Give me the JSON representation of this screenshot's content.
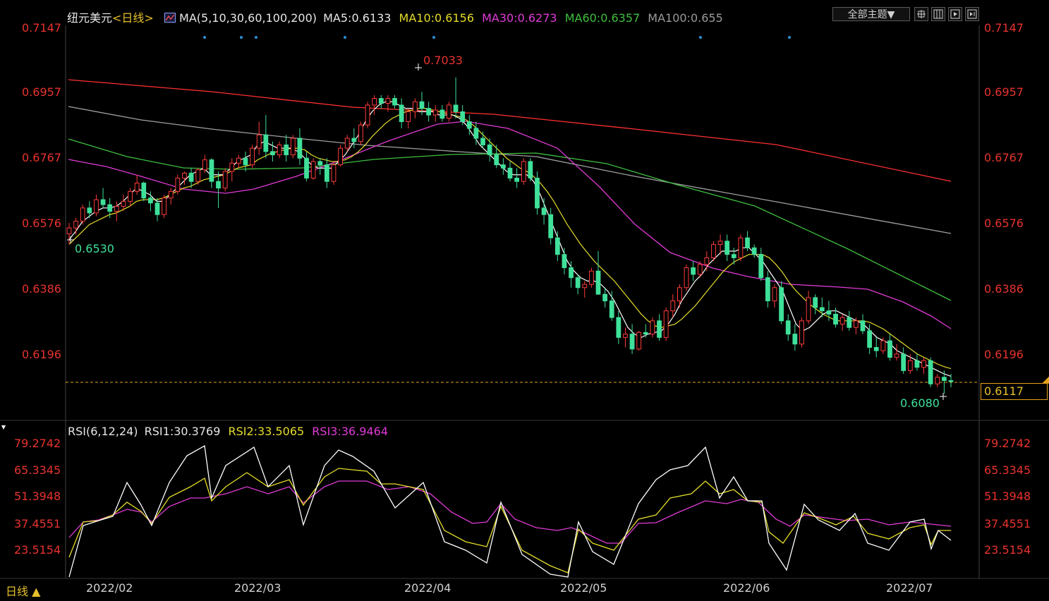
{
  "header": {
    "symbol": "纽元美元",
    "period": "<日线>",
    "ma_label": "MA(5,10,30,60,100,200)",
    "ma5": "MA5:0.6133",
    "ma10": "MA10:0.6156",
    "ma30": "MA30:0.6273",
    "ma60": "MA60:0.6357",
    "ma100": "MA100:0.655",
    "theme_button": "全部主题▼",
    "icon_buttons": [
      "crosshair-icon",
      "layout-icon",
      "replay-icon",
      "next-icon"
    ]
  },
  "price_axis": {
    "labels": [
      "0.7147",
      "0.6957",
      "0.6767",
      "0.6576",
      "0.6386",
      "0.6196"
    ],
    "current_price": "0.6117",
    "high_label": "0.7033",
    "low_label_left": "0.6530",
    "low_label_right": "0.6080"
  },
  "rsi": {
    "label": "RSI(6,12,24)",
    "rsi1": "RSI1:30.3769",
    "rsi2": "RSI2:33.5065",
    "rsi3": "RSI3:36.9464",
    "axis_labels": [
      "79.2742",
      "65.3345",
      "51.3948",
      "37.4551",
      "23.5154"
    ]
  },
  "dates": [
    "2022/02",
    "2022/03",
    "2022/04",
    "2022/05",
    "2022/06",
    "2022/07"
  ],
  "footer": {
    "period_button": "日线 ▲"
  },
  "colors": {
    "up": "#ff3b3b",
    "down": "#3fe09a",
    "ma5": "#ffffff",
    "ma10": "#e5dd2a",
    "ma30": "#e03bd7",
    "ma60": "#3fbf3f",
    "ma100": "#a0a0a0",
    "ma200": "#ff3030",
    "axis_text": "#e8332e"
  },
  "chart_data": {
    "type": "candlestick",
    "ylim": [
      0.6,
      0.719
    ],
    "ohlc": [
      [
        0.6562,
        0.6595,
        0.653,
        0.658
      ],
      [
        0.658,
        0.661,
        0.656,
        0.66
      ],
      [
        0.66,
        0.665,
        0.659,
        0.664
      ],
      [
        0.664,
        0.666,
        0.661,
        0.6625
      ],
      [
        0.6625,
        0.668,
        0.6615,
        0.6665
      ],
      [
        0.6665,
        0.67,
        0.664,
        0.665
      ],
      [
        0.665,
        0.667,
        0.661,
        0.663
      ],
      [
        0.663,
        0.666,
        0.66,
        0.6645
      ],
      [
        0.6645,
        0.668,
        0.663,
        0.666
      ],
      [
        0.666,
        0.67,
        0.6645,
        0.669
      ],
      [
        0.669,
        0.674,
        0.668,
        0.6715
      ],
      [
        0.6715,
        0.672,
        0.666,
        0.667
      ],
      [
        0.667,
        0.669,
        0.663,
        0.6655
      ],
      [
        0.6655,
        0.667,
        0.66,
        0.662
      ],
      [
        0.662,
        0.668,
        0.661,
        0.667
      ],
      [
        0.667,
        0.67,
        0.665,
        0.669
      ],
      [
        0.669,
        0.674,
        0.668,
        0.673
      ],
      [
        0.673,
        0.675,
        0.671,
        0.6745
      ],
      [
        0.6745,
        0.676,
        0.67,
        0.672
      ],
      [
        0.672,
        0.676,
        0.671,
        0.6755
      ],
      [
        0.6755,
        0.68,
        0.6745,
        0.6785
      ],
      [
        0.6785,
        0.679,
        0.67,
        0.672
      ],
      [
        0.672,
        0.675,
        0.664,
        0.67
      ],
      [
        0.67,
        0.676,
        0.669,
        0.675
      ],
      [
        0.675,
        0.679,
        0.672,
        0.6775
      ],
      [
        0.6775,
        0.68,
        0.676,
        0.679
      ],
      [
        0.679,
        0.681,
        0.675,
        0.677
      ],
      [
        0.677,
        0.683,
        0.676,
        0.682
      ],
      [
        0.682,
        0.69,
        0.68,
        0.686
      ],
      [
        0.686,
        0.692,
        0.679,
        0.681
      ],
      [
        0.681,
        0.684,
        0.678,
        0.68
      ],
      [
        0.68,
        0.684,
        0.679,
        0.683
      ],
      [
        0.683,
        0.686,
        0.678,
        0.68
      ],
      [
        0.68,
        0.686,
        0.679,
        0.685
      ],
      [
        0.685,
        0.688,
        0.677,
        0.679
      ],
      [
        0.679,
        0.681,
        0.672,
        0.673
      ],
      [
        0.673,
        0.679,
        0.6725,
        0.678
      ],
      [
        0.678,
        0.679,
        0.674,
        0.677
      ],
      [
        0.677,
        0.679,
        0.67,
        0.672
      ],
      [
        0.672,
        0.678,
        0.671,
        0.677
      ],
      [
        0.677,
        0.683,
        0.6765,
        0.682
      ],
      [
        0.682,
        0.686,
        0.681,
        0.685
      ],
      [
        0.685,
        0.688,
        0.682,
        0.684
      ],
      [
        0.684,
        0.69,
        0.683,
        0.689
      ],
      [
        0.689,
        0.696,
        0.688,
        0.695
      ],
      [
        0.695,
        0.698,
        0.692,
        0.697
      ],
      [
        0.697,
        0.698,
        0.694,
        0.6955
      ],
      [
        0.6955,
        0.698,
        0.693,
        0.697
      ],
      [
        0.697,
        0.698,
        0.694,
        0.695
      ],
      [
        0.695,
        0.697,
        0.688,
        0.69
      ],
      [
        0.69,
        0.694,
        0.688,
        0.693
      ],
      [
        0.693,
        0.697,
        0.691,
        0.696
      ],
      [
        0.696,
        0.699,
        0.692,
        0.694
      ],
      [
        0.694,
        0.696,
        0.69,
        0.692
      ],
      [
        0.692,
        0.695,
        0.69,
        0.6935
      ],
      [
        0.6935,
        0.695,
        0.69,
        0.691
      ],
      [
        0.691,
        0.696,
        0.69,
        0.695
      ],
      [
        0.695,
        0.7033,
        0.691,
        0.693
      ],
      [
        0.693,
        0.695,
        0.689,
        0.69
      ],
      [
        0.69,
        0.692,
        0.686,
        0.688
      ],
      [
        0.688,
        0.69,
        0.683,
        0.685
      ],
      [
        0.685,
        0.687,
        0.682,
        0.683
      ],
      [
        0.683,
        0.685,
        0.678,
        0.68
      ],
      [
        0.68,
        0.683,
        0.676,
        0.677
      ],
      [
        0.677,
        0.679,
        0.674,
        0.676
      ],
      [
        0.676,
        0.678,
        0.672,
        0.673
      ],
      [
        0.673,
        0.676,
        0.67,
        0.672
      ],
      [
        0.672,
        0.679,
        0.671,
        0.678
      ],
      [
        0.678,
        0.679,
        0.672,
        0.673
      ],
      [
        0.673,
        0.675,
        0.662,
        0.664
      ],
      [
        0.664,
        0.667,
        0.659,
        0.662
      ],
      [
        0.662,
        0.664,
        0.653,
        0.655
      ],
      [
        0.655,
        0.657,
        0.648,
        0.65
      ],
      [
        0.65,
        0.652,
        0.644,
        0.646
      ],
      [
        0.646,
        0.648,
        0.64,
        0.643
      ],
      [
        0.643,
        0.644,
        0.638,
        0.64
      ],
      [
        0.64,
        0.642,
        0.637,
        0.641
      ],
      [
        0.641,
        0.646,
        0.64,
        0.645
      ],
      [
        0.645,
        0.651,
        0.638,
        0.638
      ],
      [
        0.638,
        0.64,
        0.634,
        0.636
      ],
      [
        0.636,
        0.639,
        0.63,
        0.631
      ],
      [
        0.631,
        0.633,
        0.623,
        0.625
      ],
      [
        0.625,
        0.628,
        0.622,
        0.626
      ],
      [
        0.626,
        0.629,
        0.62,
        0.6215
      ],
      [
        0.6215,
        0.627,
        0.621,
        0.6265
      ],
      [
        0.6265,
        0.629,
        0.625,
        0.626
      ],
      [
        0.626,
        0.631,
        0.625,
        0.63
      ],
      [
        0.63,
        0.632,
        0.624,
        0.625
      ],
      [
        0.625,
        0.634,
        0.624,
        0.633
      ],
      [
        0.633,
        0.638,
        0.631,
        0.636
      ],
      [
        0.636,
        0.641,
        0.634,
        0.64
      ],
      [
        0.64,
        0.647,
        0.639,
        0.646
      ],
      [
        0.646,
        0.648,
        0.642,
        0.644
      ],
      [
        0.644,
        0.648,
        0.643,
        0.647
      ],
      [
        0.647,
        0.651,
        0.645,
        0.649
      ],
      [
        0.649,
        0.654,
        0.648,
        0.653
      ],
      [
        0.653,
        0.656,
        0.65,
        0.654
      ],
      [
        0.654,
        0.656,
        0.648,
        0.65
      ],
      [
        0.65,
        0.652,
        0.647,
        0.649
      ],
      [
        0.649,
        0.656,
        0.648,
        0.655
      ],
      [
        0.655,
        0.657,
        0.651,
        0.652
      ],
      [
        0.652,
        0.653,
        0.649,
        0.65
      ],
      [
        0.65,
        0.652,
        0.642,
        0.643
      ],
      [
        0.643,
        0.645,
        0.634,
        0.636
      ],
      [
        0.636,
        0.641,
        0.634,
        0.64
      ],
      [
        0.64,
        0.642,
        0.629,
        0.63
      ],
      [
        0.63,
        0.632,
        0.624,
        0.626
      ],
      [
        0.626,
        0.629,
        0.621,
        0.623
      ],
      [
        0.623,
        0.631,
        0.622,
        0.63
      ],
      [
        0.63,
        0.639,
        0.629,
        0.637
      ],
      [
        0.637,
        0.638,
        0.632,
        0.634
      ],
      [
        0.634,
        0.637,
        0.631,
        0.633
      ],
      [
        0.633,
        0.636,
        0.63,
        0.632
      ],
      [
        0.632,
        0.634,
        0.628,
        0.629
      ],
      [
        0.629,
        0.632,
        0.627,
        0.631
      ],
      [
        0.631,
        0.633,
        0.627,
        0.628
      ],
      [
        0.628,
        0.631,
        0.626,
        0.63
      ],
      [
        0.63,
        0.632,
        0.626,
        0.627
      ],
      [
        0.627,
        0.629,
        0.62,
        0.622
      ],
      [
        0.622,
        0.625,
        0.619,
        0.621
      ],
      [
        0.621,
        0.625,
        0.62,
        0.624
      ],
      [
        0.624,
        0.626,
        0.618,
        0.619
      ],
      [
        0.619,
        0.623,
        0.618,
        0.62
      ],
      [
        0.62,
        0.622,
        0.614,
        0.615
      ],
      [
        0.615,
        0.62,
        0.614,
        0.618
      ],
      [
        0.618,
        0.62,
        0.615,
        0.616
      ],
      [
        0.616,
        0.619,
        0.614,
        0.618
      ],
      [
        0.618,
        0.619,
        0.61,
        0.611
      ],
      [
        0.611,
        0.614,
        0.61,
        0.613
      ],
      [
        0.613,
        0.615,
        0.608,
        0.612
      ],
      [
        0.612,
        0.614,
        0.61,
        0.6117
      ]
    ],
    "ma_points": {
      "ma5": [
        [
          0.6545,
          0.657,
          0.66,
          0.6615,
          0.663,
          0.664,
          0.664,
          0.6645,
          0.666,
          0.668,
          0.67,
          0.669,
          0.668,
          0.666,
          0.666,
          0.668,
          0.67,
          0.672,
          0.674,
          0.675,
          0.676,
          0.674,
          0.674,
          0.674,
          0.676,
          0.678,
          0.679,
          0.68,
          0.683,
          0.684,
          0.683,
          0.682,
          0.682,
          0.682,
          0.681,
          0.679,
          0.677,
          0.676,
          0.676,
          0.676,
          0.678,
          0.68,
          0.683,
          0.686,
          0.69,
          0.693,
          0.695,
          0.696,
          0.696,
          0.695,
          0.694,
          0.694,
          0.693,
          0.693,
          0.693,
          0.692,
          0.692,
          0.692,
          0.691,
          0.689,
          0.686,
          0.683,
          0.681,
          0.679,
          0.677,
          0.675,
          0.674,
          0.674,
          0.674,
          0.672,
          0.668,
          0.663,
          0.658,
          0.653,
          0.648,
          0.645,
          0.643,
          0.642,
          0.642,
          0.641,
          0.639,
          0.636,
          0.632,
          0.628,
          0.626,
          0.625,
          0.626,
          0.6265,
          0.627,
          0.629,
          0.632,
          0.636,
          0.639,
          0.642,
          0.644,
          0.647,
          0.649,
          0.651,
          0.651,
          0.651,
          0.652,
          0.652,
          0.65,
          0.648,
          0.645,
          0.642,
          0.639,
          0.634,
          0.629,
          0.627,
          0.628,
          0.63,
          0.632,
          0.633,
          0.633,
          0.632,
          0.631,
          0.63,
          0.629,
          0.627,
          0.625,
          0.624,
          0.623,
          0.621,
          0.62,
          0.619,
          0.618,
          0.617,
          0.616,
          0.615,
          0.614,
          0.6133
        ]
      ],
      "ma10": [
        [
          0.653,
          0.655,
          0.657,
          0.659,
          0.66,
          0.661,
          0.662,
          0.6625,
          0.6635,
          0.6645,
          0.666,
          0.6665,
          0.6665,
          0.6665,
          0.667,
          0.668,
          0.669,
          0.67,
          0.6705,
          0.6715,
          0.6725,
          0.673,
          0.6735,
          0.674,
          0.675,
          0.676,
          0.6765,
          0.677,
          0.6785,
          0.6795,
          0.6805,
          0.681,
          0.6815,
          0.682,
          0.682,
          0.6815,
          0.68,
          0.679,
          0.6785,
          0.678,
          0.678,
          0.6785,
          0.6795,
          0.681,
          0.683,
          0.6855,
          0.6875,
          0.6895,
          0.691,
          0.692,
          0.693,
          0.6935,
          0.694,
          0.694,
          0.6935,
          0.693,
          0.6925,
          0.692,
          0.6915,
          0.6905,
          0.689,
          0.687,
          0.685,
          0.683,
          0.681,
          0.679,
          0.6775,
          0.676,
          0.675,
          0.6735,
          0.6715,
          0.669,
          0.666,
          0.6625,
          0.659,
          0.656,
          0.653,
          0.6505,
          0.648,
          0.646,
          0.644,
          0.642,
          0.6395,
          0.637,
          0.6345,
          0.632,
          0.63,
          0.6285,
          0.628,
          0.6285,
          0.629,
          0.6305,
          0.6325,
          0.6345,
          0.637,
          0.6395,
          0.642,
          0.6445,
          0.6465,
          0.648,
          0.649,
          0.65,
          0.65,
          0.65,
          0.649,
          0.647,
          0.6445,
          0.6415,
          0.639,
          0.637,
          0.635,
          0.6335,
          0.632,
          0.631,
          0.63,
          0.63,
          0.63,
          0.63,
          0.63,
          0.6295,
          0.6285,
          0.6275,
          0.626,
          0.6245,
          0.623,
          0.6215,
          0.62,
          0.619,
          0.618,
          0.617,
          0.6162,
          0.6156
        ]
      ]
    }
  }
}
